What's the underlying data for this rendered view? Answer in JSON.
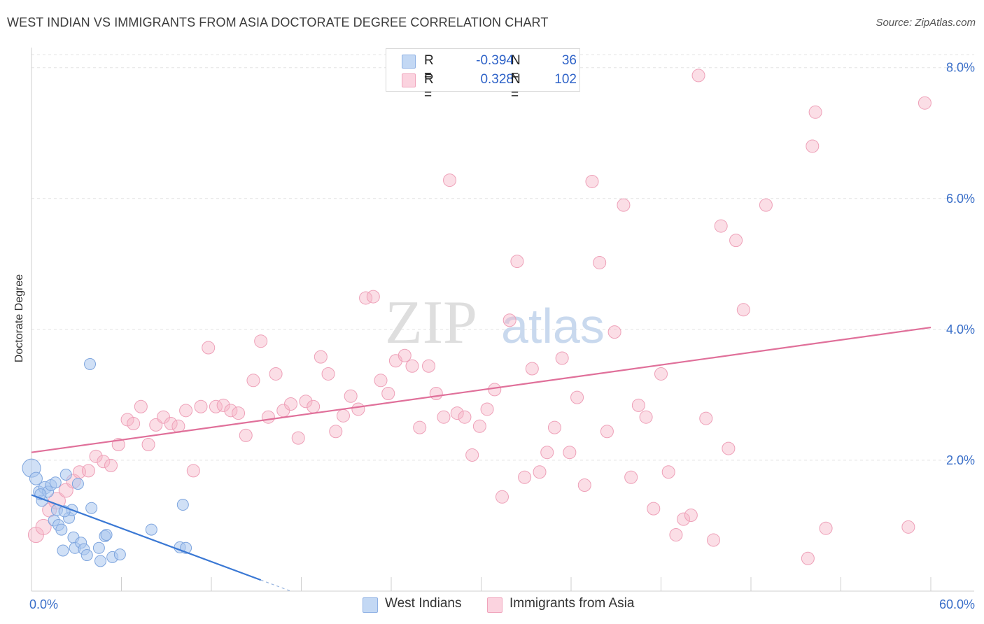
{
  "header": {
    "title": "WEST INDIAN VS IMMIGRANTS FROM ASIA DOCTORATE DEGREE CORRELATION CHART",
    "source": "Source: ZipAtlas.com"
  },
  "watermark": {
    "zip": "ZIP",
    "atlas": "atlas"
  },
  "legend": {
    "west_indians": {
      "r_label": "R =",
      "r_value": "-0.394",
      "n_label": "N =",
      "n_value": "36",
      "color": "#a9c6ee"
    },
    "asia": {
      "r_label": "R =",
      "r_value": "0.328",
      "n_label": "N =",
      "n_value": "102",
      "color": "#f6b6c8"
    }
  },
  "bottom_legend": {
    "west_indians": "West Indians",
    "asia": "Immigrants from Asia"
  },
  "chart_data": {
    "type": "scatter",
    "title": "WEST INDIAN VS IMMIGRANTS FROM ASIA DOCTORATE DEGREE CORRELATION CHART",
    "xlabel": "",
    "ylabel": "Doctorate Degree",
    "xlim": [
      0,
      60
    ],
    "ylim": [
      0,
      8.2
    ],
    "x_tick_labels": [
      "0.0%",
      "60.0%"
    ],
    "y_ticks": [
      2,
      4,
      6,
      8
    ],
    "y_tick_labels": [
      "2.0%",
      "4.0%",
      "6.0%",
      "8.0%"
    ],
    "grid": true,
    "legend_position": "top-center",
    "colors": {
      "west_indians": "#3a78d4",
      "asia": "#e0709a"
    },
    "series": [
      {
        "name": "West Indians",
        "r": -0.394,
        "n": 36,
        "trend": {
          "x": [
            0,
            15.3
          ],
          "y": [
            1.47,
            0.17
          ],
          "dashed_to": [
            17.3,
            0.0
          ]
        },
        "points": [
          [
            0.0,
            1.88,
            13
          ],
          [
            0.3,
            1.72,
            9
          ],
          [
            0.5,
            1.52,
            8
          ],
          [
            0.7,
            1.38,
            8
          ],
          [
            0.9,
            1.58,
            9
          ],
          [
            1.1,
            1.52,
            8
          ],
          [
            1.3,
            1.62,
            8
          ],
          [
            1.5,
            1.08,
            8
          ],
          [
            1.7,
            1.24,
            8
          ],
          [
            1.8,
            1.01,
            8
          ],
          [
            2.0,
            0.94,
            8
          ],
          [
            2.1,
            0.62,
            8
          ],
          [
            2.3,
            1.78,
            8
          ],
          [
            2.5,
            1.12,
            8
          ],
          [
            2.7,
            1.24,
            8
          ],
          [
            2.8,
            0.82,
            8
          ],
          [
            2.9,
            0.66,
            8
          ],
          [
            3.1,
            1.64,
            8
          ],
          [
            3.3,
            0.74,
            8
          ],
          [
            3.5,
            0.64,
            8
          ],
          [
            3.7,
            0.55,
            8
          ],
          [
            3.9,
            3.47,
            8
          ],
          [
            4.0,
            1.27,
            8
          ],
          [
            4.5,
            0.66,
            8
          ],
          [
            4.6,
            0.46,
            8
          ],
          [
            4.9,
            0.84,
            8
          ],
          [
            5.0,
            0.86,
            8
          ],
          [
            5.4,
            0.52,
            8
          ],
          [
            5.9,
            0.56,
            8
          ],
          [
            8.0,
            0.94,
            8
          ],
          [
            9.9,
            0.67,
            8
          ],
          [
            10.1,
            1.32,
            8
          ],
          [
            10.3,
            0.66,
            8
          ],
          [
            0.6,
            1.48,
            8
          ],
          [
            1.6,
            1.66,
            8
          ],
          [
            2.2,
            1.22,
            8
          ]
        ]
      },
      {
        "name": "Immigrants from Asia",
        "r": 0.328,
        "n": 102,
        "trend": {
          "x": [
            0,
            60
          ],
          "y": [
            2.12,
            4.03
          ]
        },
        "points": [
          [
            0.3,
            0.86,
            11
          ],
          [
            0.8,
            0.98,
            11
          ],
          [
            1.2,
            1.24,
            10
          ],
          [
            1.7,
            1.38,
            12
          ],
          [
            2.3,
            1.54,
            10
          ],
          [
            2.8,
            1.68,
            10
          ],
          [
            3.2,
            1.82,
            9
          ],
          [
            3.8,
            1.84,
            9
          ],
          [
            4.3,
            2.06,
            9
          ],
          [
            4.8,
            1.98,
            9
          ],
          [
            5.3,
            1.92,
            9
          ],
          [
            5.8,
            2.24,
            9
          ],
          [
            6.4,
            2.62,
            9
          ],
          [
            6.8,
            2.56,
            9
          ],
          [
            7.3,
            2.82,
            9
          ],
          [
            7.8,
            2.24,
            9
          ],
          [
            8.3,
            2.54,
            9
          ],
          [
            8.8,
            2.66,
            9
          ],
          [
            9.3,
            2.56,
            9
          ],
          [
            9.8,
            2.52,
            9
          ],
          [
            10.3,
            2.76,
            9
          ],
          [
            10.8,
            1.84,
            9
          ],
          [
            11.3,
            2.82,
            9
          ],
          [
            11.8,
            3.72,
            9
          ],
          [
            12.3,
            2.82,
            9
          ],
          [
            12.8,
            2.84,
            9
          ],
          [
            13.3,
            2.76,
            9
          ],
          [
            13.8,
            2.72,
            9
          ],
          [
            14.3,
            2.38,
            9
          ],
          [
            14.8,
            3.22,
            9
          ],
          [
            15.3,
            3.82,
            9
          ],
          [
            15.8,
            2.66,
            9
          ],
          [
            16.3,
            3.32,
            9
          ],
          [
            16.8,
            2.76,
            9
          ],
          [
            17.3,
            2.86,
            9
          ],
          [
            17.8,
            2.34,
            9
          ],
          [
            18.3,
            2.9,
            9
          ],
          [
            18.8,
            2.82,
            9
          ],
          [
            19.3,
            3.58,
            9
          ],
          [
            19.8,
            3.32,
            9
          ],
          [
            20.3,
            2.44,
            9
          ],
          [
            20.8,
            2.68,
            9
          ],
          [
            21.3,
            2.98,
            9
          ],
          [
            21.8,
            2.78,
            9
          ],
          [
            22.3,
            4.48,
            9
          ],
          [
            22.8,
            4.5,
            9
          ],
          [
            23.3,
            3.22,
            9
          ],
          [
            23.8,
            3.02,
            9
          ],
          [
            24.3,
            3.52,
            9
          ],
          [
            24.9,
            3.6,
            9
          ],
          [
            25.4,
            3.44,
            9
          ],
          [
            25.9,
            2.5,
            9
          ],
          [
            26.5,
            3.44,
            9
          ],
          [
            27.0,
            3.02,
            9
          ],
          [
            27.5,
            2.66,
            9
          ],
          [
            27.9,
            6.28,
            9
          ],
          [
            28.4,
            2.72,
            9
          ],
          [
            28.9,
            2.66,
            9
          ],
          [
            29.4,
            2.08,
            9
          ],
          [
            29.9,
            2.52,
            9
          ],
          [
            30.4,
            2.78,
            9
          ],
          [
            30.9,
            3.08,
            9
          ],
          [
            31.4,
            1.44,
            9
          ],
          [
            31.9,
            4.14,
            9
          ],
          [
            32.4,
            5.04,
            9
          ],
          [
            32.9,
            1.74,
            9
          ],
          [
            33.4,
            3.4,
            9
          ],
          [
            33.9,
            1.82,
            9
          ],
          [
            34.4,
            2.12,
            9
          ],
          [
            34.9,
            2.5,
            9
          ],
          [
            35.4,
            3.56,
            9
          ],
          [
            35.9,
            2.12,
            9
          ],
          [
            36.4,
            2.96,
            9
          ],
          [
            36.9,
            1.62,
            9
          ],
          [
            37.4,
            6.26,
            9
          ],
          [
            37.9,
            5.02,
            9
          ],
          [
            38.4,
            2.44,
            9
          ],
          [
            38.9,
            3.96,
            9
          ],
          [
            39.5,
            5.9,
            9
          ],
          [
            40.0,
            1.74,
            9
          ],
          [
            40.5,
            2.84,
            9
          ],
          [
            41.0,
            2.66,
            9
          ],
          [
            41.5,
            1.26,
            9
          ],
          [
            42.0,
            3.32,
            9
          ],
          [
            42.5,
            1.82,
            9
          ],
          [
            43.0,
            0.86,
            9
          ],
          [
            43.5,
            1.1,
            9
          ],
          [
            44.0,
            1.16,
            9
          ],
          [
            44.5,
            7.88,
            9
          ],
          [
            45.0,
            2.64,
            9
          ],
          [
            45.5,
            0.78,
            9
          ],
          [
            46.0,
            5.58,
            9
          ],
          [
            46.5,
            2.18,
            9
          ],
          [
            47.0,
            5.36,
            9
          ],
          [
            47.5,
            4.3,
            9
          ],
          [
            49.0,
            5.9,
            9
          ],
          [
            52.1,
            6.8,
            9
          ],
          [
            52.3,
            7.32,
            9
          ],
          [
            51.8,
            0.5,
            9
          ],
          [
            53.0,
            0.96,
            9
          ],
          [
            58.5,
            0.98,
            9
          ],
          [
            59.6,
            7.46,
            9
          ]
        ]
      }
    ]
  }
}
